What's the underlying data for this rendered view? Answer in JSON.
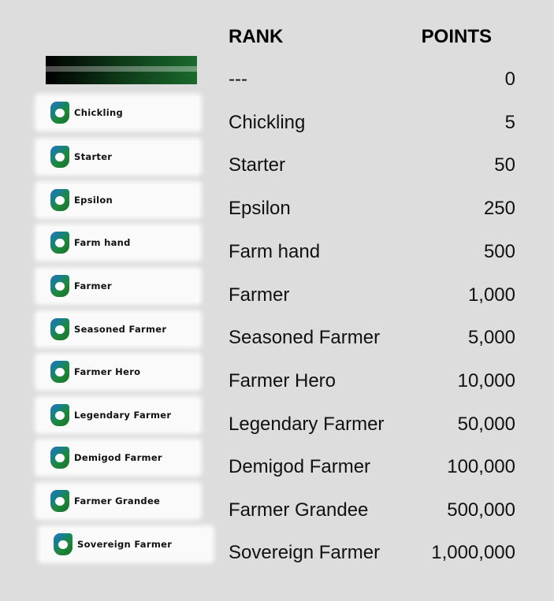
{
  "header": {
    "rank": "RANK",
    "points": "POINTS"
  },
  "rows": [
    {
      "badge": "",
      "rank": "---",
      "points": "0"
    },
    {
      "badge": "Chickling",
      "rank": "Chickling",
      "points": "5"
    },
    {
      "badge": "Starter",
      "rank": "Starter",
      "points": "50"
    },
    {
      "badge": "Epsilon",
      "rank": "Epsilon",
      "points": "250"
    },
    {
      "badge": "Farm hand",
      "rank": "Farm hand",
      "points": "500"
    },
    {
      "badge": "Farmer",
      "rank": "Farmer",
      "points": "1,000"
    },
    {
      "badge": "Seasoned Farmer",
      "rank": "Seasoned Farmer",
      "points": "5,000"
    },
    {
      "badge": "Farmer Hero",
      "rank": "Farmer Hero",
      "points": "10,000"
    },
    {
      "badge": "Legendary Farmer",
      "rank": "Legendary Farmer",
      "points": "50,000"
    },
    {
      "badge": "Demigod Farmer",
      "rank": "Demigod Farmer",
      "points": "100,000"
    },
    {
      "badge": "Farmer Grandee",
      "rank": "Farmer Grandee",
      "points": "500,000"
    },
    {
      "badge": "Sovereign Farmer",
      "rank": "Sovereign Farmer",
      "points": "1,000,000"
    }
  ]
}
